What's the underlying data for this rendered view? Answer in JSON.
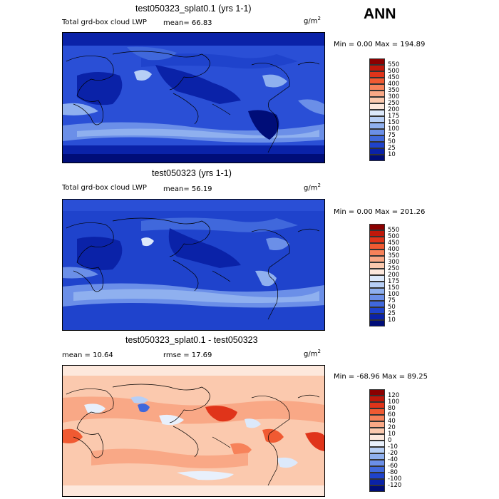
{
  "season": "ANN",
  "units_base": "g/m",
  "units_exp": "2",
  "panels": [
    {
      "title": "test050323_splat0.1 (yrs 1-1)",
      "field_label": "Total grd-box cloud LWP",
      "stat_text": "mean=  66.83",
      "minmax": "Min =    0.00 Max = 194.89",
      "levels": [
        "550",
        "500",
        "450",
        "400",
        "350",
        "300",
        "250",
        "200",
        "175",
        "150",
        "100",
        "75",
        "50",
        "25",
        "10"
      ],
      "colors": [
        "#8b0000",
        "#c0180a",
        "#e0341a",
        "#f05a32",
        "#f7825a",
        "#f9a886",
        "#fbc9ae",
        "#fde8dc",
        "#dce9fb",
        "#b7cff6",
        "#8fb0ef",
        "#6b8fe8",
        "#4068dc",
        "#1f43cc",
        "#0a22a8",
        "#000d78"
      ]
    },
    {
      "title": "test050323 (yrs 1-1)",
      "field_label": "Total grd-box cloud LWP",
      "stat_text": "mean=  56.19",
      "minmax": "Min =    0.00 Max = 201.26",
      "levels": [
        "550",
        "500",
        "450",
        "400",
        "350",
        "300",
        "250",
        "200",
        "175",
        "150",
        "100",
        "75",
        "50",
        "25",
        "10"
      ],
      "colors": [
        "#8b0000",
        "#c0180a",
        "#e0341a",
        "#f05a32",
        "#f7825a",
        "#f9a886",
        "#fbc9ae",
        "#fde8dc",
        "#dce9fb",
        "#b7cff6",
        "#8fb0ef",
        "#6b8fe8",
        "#4068dc",
        "#1f43cc",
        "#0a22a8",
        "#000d78"
      ]
    },
    {
      "title": "test050323_splat0.1 - test050323",
      "mean_text": "mean =   10.64",
      "rmse_text": "rmse =   17.69",
      "minmax": "Min = -68.96 Max =  89.25",
      "levels": [
        "120",
        "100",
        "80",
        "60",
        "40",
        "20",
        "10",
        "0",
        "-10",
        "-20",
        "-40",
        "-60",
        "-80",
        "-100",
        "-120"
      ],
      "colors": [
        "#8b0000",
        "#c0180a",
        "#e0341a",
        "#f05a32",
        "#f7825a",
        "#f9a886",
        "#fbc9ae",
        "#fde8dc",
        "#e8f0fc",
        "#b7cff6",
        "#8fb0ef",
        "#6b8fe8",
        "#4068dc",
        "#1f43cc",
        "#0a22a8",
        "#000d78"
      ]
    }
  ]
}
